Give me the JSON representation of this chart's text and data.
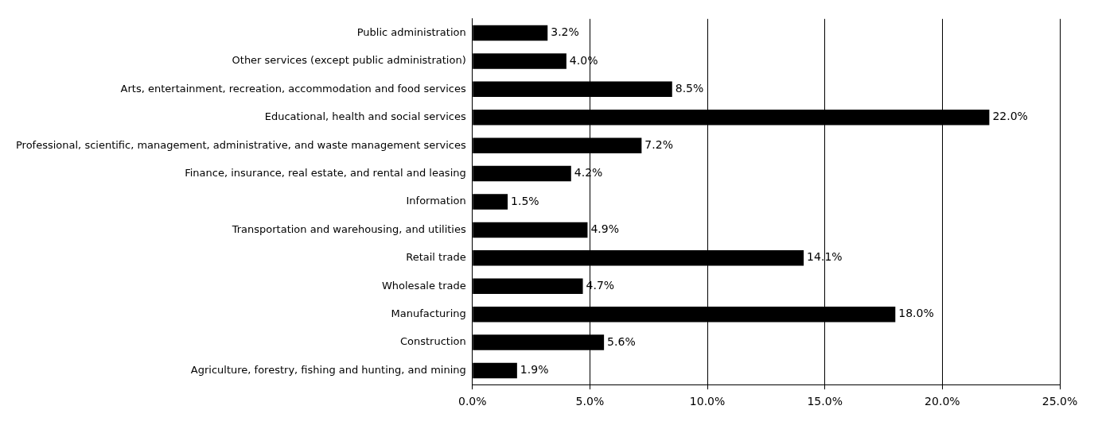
{
  "chart_data": {
    "type": "bar",
    "orientation": "horizontal",
    "categories": [
      "Public administration",
      "Other services (except public administration)",
      "Arts, entertainment, recreation, accommodation and food services",
      "Educational, health and social services",
      "Professional, scientific, management, administrative, and waste management services",
      "Finance, insurance, real estate, and rental and leasing",
      "Information",
      "Transportation and warehousing, and utilities",
      "Retail trade",
      "Wholesale trade",
      "Manufacturing",
      "Construction",
      "Agriculture, forestry, fishing and hunting, and mining"
    ],
    "values": [
      3.2,
      4.0,
      8.5,
      22.0,
      7.2,
      4.2,
      1.5,
      4.9,
      14.1,
      4.7,
      18.0,
      5.6,
      1.9
    ],
    "value_labels": [
      "3.2%",
      "4.0%",
      "8.5%",
      "22.0%",
      "7.2%",
      "4.2%",
      "1.5%",
      "4.9%",
      "14.1%",
      "4.7%",
      "18.0%",
      "5.6%",
      "1.9%"
    ],
    "color": "#000000",
    "xlim": [
      0,
      25
    ],
    "xticks": [
      {
        "value": 0,
        "label": "0.0%"
      },
      {
        "value": 5,
        "label": "5.0%"
      },
      {
        "value": 10,
        "label": "10.0%"
      },
      {
        "value": 15,
        "label": "15.0%"
      },
      {
        "value": 20,
        "label": "20.0%"
      },
      {
        "value": 25,
        "label": "25.0%"
      }
    ],
    "grid": "x",
    "legend": false
  }
}
